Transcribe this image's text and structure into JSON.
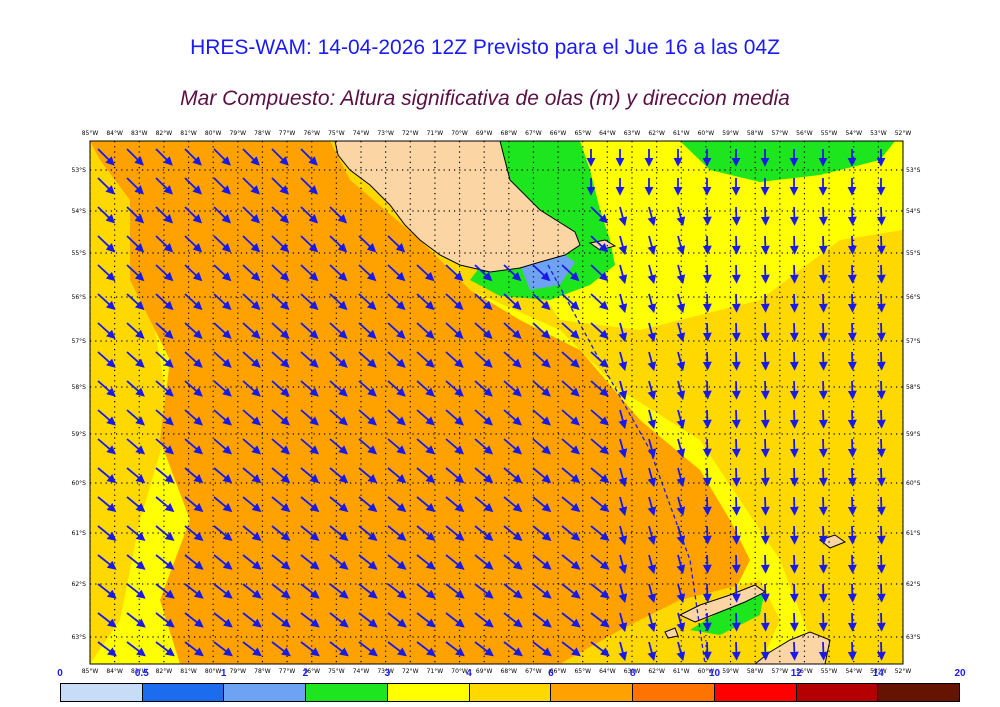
{
  "header": {
    "title": "HRES-WAM: 14-04-2026 12Z Previsto para el Jue 16 a las 04Z",
    "subtitle": "Mar Compuesto: Altura significativa de olas (m) y direccion media"
  },
  "axes": {
    "lon_labels": [
      "85°W",
      "84°W",
      "83°W",
      "82°W",
      "81°W",
      "80°W",
      "79°W",
      "78°W",
      "77°W",
      "76°W",
      "75°W",
      "74°W",
      "73°W",
      "72°W",
      "71°W",
      "70°W",
      "69°W",
      "68°W",
      "67°W",
      "66°W",
      "65°W",
      "64°W",
      "63°W",
      "62°W",
      "61°W",
      "60°W",
      "59°W",
      "58°W",
      "57°W",
      "56°W",
      "55°W",
      "54°W",
      "53°W",
      "52°W"
    ],
    "lat_labels": [
      "53°S",
      "54°S",
      "55°S",
      "56°S",
      "57°S",
      "58°S",
      "59°S",
      "60°S",
      "61°S",
      "62°S",
      "63°S"
    ]
  },
  "legend": {
    "labels": [
      "0",
      "0.5",
      "1",
      "2",
      "3",
      "4",
      "6",
      "8",
      "10",
      "12",
      "14",
      "20"
    ],
    "colors": [
      "#c6dcf7",
      "#1c6cf0",
      "#6ea2f2",
      "#1ee61e",
      "#ffff00",
      "#ffd800",
      "#ffa200",
      "#ff7400",
      "#ff0000",
      "#b40000",
      "#641400",
      "#323232"
    ]
  },
  "colors": {
    "ocean_yellow": "#ffff00",
    "ocean_gold": "#ffd800",
    "ocean_orange": "#ffa200",
    "ocean_green": "#1ee61e",
    "ocean_blue": "#6ea2f2",
    "land": "#fcd5a5",
    "arrow": "#1a1ae6"
  },
  "icons": {
    "wave_direction": "arrow-icon"
  }
}
